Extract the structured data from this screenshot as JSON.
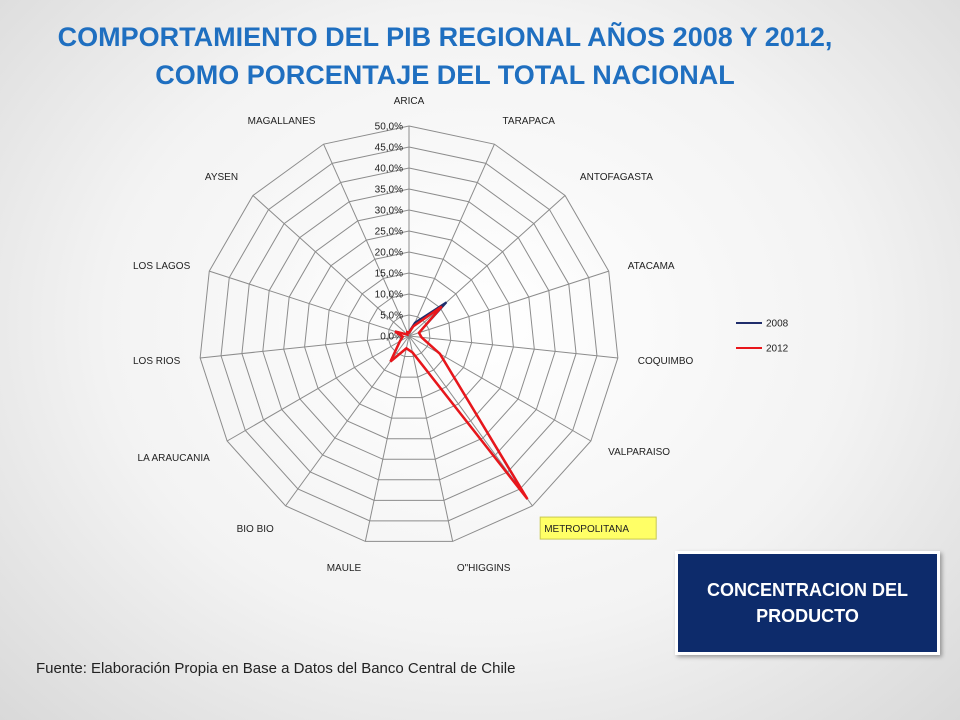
{
  "title": {
    "line1": "COMPORTAMIENTO DEL PIB REGIONAL AÑOS 2008 Y 2012,",
    "line2": "COMO PORCENTAJE DEL TOTAL NACIONAL"
  },
  "source": "Fuente: Elaboración Propia en Base a Datos del Banco Central de Chile",
  "callout": "CONCENTRACION DEL PRODUCTO",
  "chart_data": {
    "type": "radar",
    "categories": [
      "ARICA",
      "TARAPACA",
      "ANTOFAGASTA",
      "ATACAMA",
      "COQUIMBO",
      "VALPARAISO",
      "METROPOLITANA",
      "O\"HIGGINS",
      "MAULE",
      "BIO BIO",
      "LA ARAUCANIA",
      "LOS RIOS",
      "LOS LAGOS",
      "AYSEN",
      "MAGALLANES"
    ],
    "ticks": [
      "0,0%",
      "5,0%",
      "10,0%",
      "15,0%",
      "20,0%",
      "25,0%",
      "30,0%",
      "35,0%",
      "40,0%",
      "45,0%",
      "50,0%"
    ],
    "rlim": [
      0,
      50
    ],
    "highlighted_category": "METROPOLITANA",
    "highlight_color": "#ffff66",
    "legend_position": "right",
    "series": [
      {
        "name": "2008",
        "color": "#1f2d6b",
        "values": [
          1.0,
          3.5,
          12.0,
          2.5,
          3.0,
          8.5,
          47.0,
          4.0,
          3.0,
          7.5,
          2.5,
          1.5,
          3.5,
          0.5,
          1.0
        ]
      },
      {
        "name": "2012",
        "color": "#e8161b",
        "values": [
          0.8,
          2.5,
          10.5,
          2.5,
          3.0,
          8.5,
          48.0,
          4.0,
          3.0,
          7.5,
          2.5,
          1.5,
          3.5,
          0.5,
          1.0
        ]
      }
    ]
  }
}
